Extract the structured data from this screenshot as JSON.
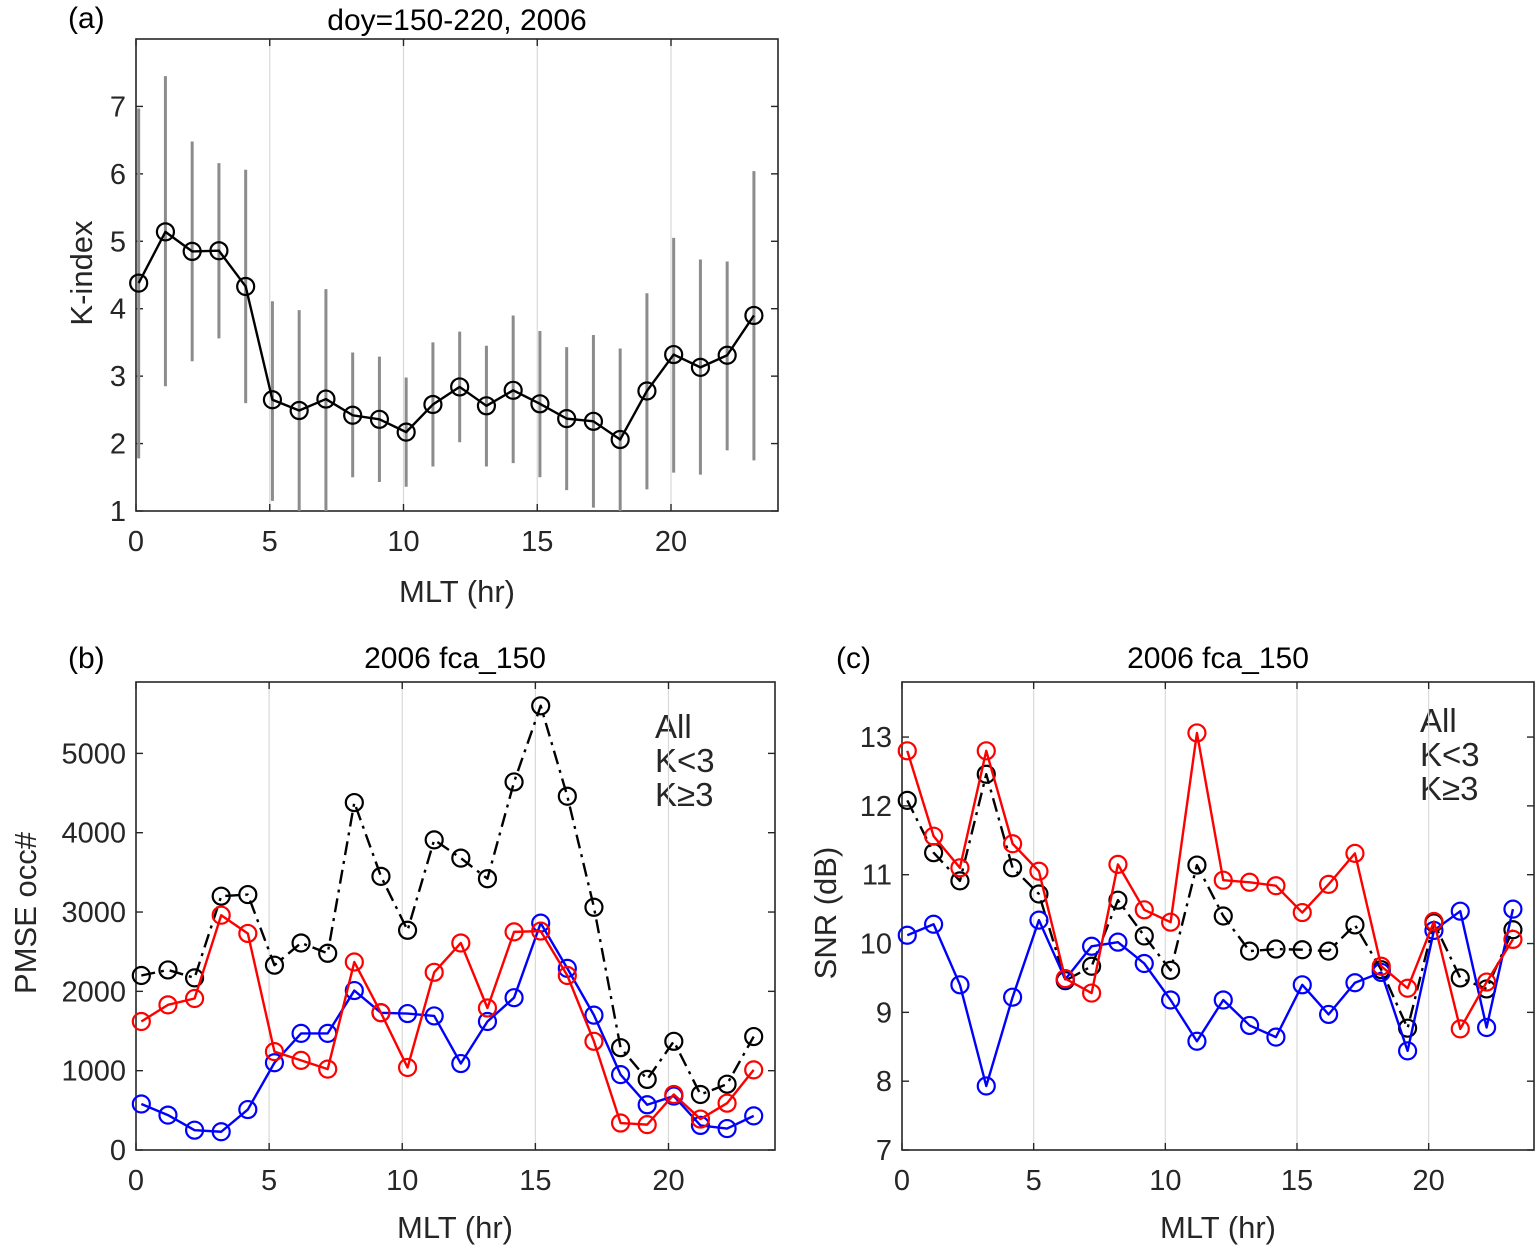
{
  "chart_data": [
    {
      "id": "a",
      "type": "line",
      "panel_label": "(a)",
      "title": "doy=150-220, 2006",
      "xlabel": "MLT (hr)",
      "ylabel": "K-index",
      "xlim": [
        0,
        24
      ],
      "ylim": [
        1,
        8
      ],
      "xticks": [
        0,
        5,
        10,
        15,
        20
      ],
      "yticks": [
        1,
        2,
        3,
        4,
        5,
        6,
        7
      ],
      "grid": "x",
      "x": [
        0.1,
        1.1,
        2.1,
        3.1,
        4.1,
        5.1,
        6.1,
        7.1,
        8.1,
        9.1,
        10.1,
        11.1,
        12.1,
        13.1,
        14.1,
        15.1,
        16.1,
        17.1,
        18.1,
        19.1,
        20.1,
        21.1,
        22.1,
        23.1
      ],
      "series": [
        {
          "values": [
            4.38,
            5.14,
            4.85,
            4.86,
            4.33,
            2.65,
            2.49,
            2.66,
            2.42,
            2.36,
            2.17,
            2.58,
            2.84,
            2.56,
            2.79,
            2.59,
            2.37,
            2.33,
            2.06,
            2.78,
            3.32,
            3.13,
            3.31,
            3.9
          ],
          "err_low": [
            1.78,
            2.85,
            3.22,
            3.56,
            2.6,
            1.15,
            1.0,
            1.0,
            1.5,
            1.43,
            1.36,
            1.66,
            2.02,
            1.66,
            1.71,
            1.5,
            1.31,
            1.05,
            1.0,
            1.32,
            1.57,
            1.54,
            1.9,
            1.75
          ],
          "err_high": [
            6.97,
            7.45,
            6.48,
            6.16,
            6.06,
            4.11,
            3.98,
            4.29,
            3.35,
            3.29,
            2.98,
            3.5,
            3.66,
            3.45,
            3.9,
            3.67,
            3.43,
            3.61,
            3.41,
            4.23,
            5.05,
            4.73,
            4.7,
            6.04
          ],
          "color": "#000000",
          "errcolor": "#8c8c8c",
          "style": "solid",
          "marker": "o"
        }
      ]
    },
    {
      "id": "b",
      "type": "line",
      "panel_label": "(b)",
      "title": "2006 fca_150",
      "xlabel": "MLT (hr)",
      "ylabel": "PMSE occ#",
      "xlim": [
        0,
        24
      ],
      "ylim": [
        0,
        5900
      ],
      "xticks": [
        0,
        5,
        10,
        15,
        20
      ],
      "yticks": [
        0,
        1000,
        2000,
        3000,
        4000,
        5000
      ],
      "grid": "x",
      "legend_position": "top-right",
      "legend": [
        "All",
        "K<3",
        "K≥3"
      ],
      "x": [
        0.2,
        1.2,
        2.2,
        3.2,
        4.2,
        5.2,
        6.2,
        7.2,
        8.2,
        9.2,
        10.2,
        11.2,
        12.2,
        13.2,
        14.2,
        15.2,
        16.2,
        17.2,
        18.2,
        19.2,
        20.2,
        21.2,
        22.2,
        23.2
      ],
      "series": [
        {
          "name": "All",
          "values": [
            2200,
            2270,
            2170,
            3200,
            3220,
            2330,
            2610,
            2480,
            4380,
            3450,
            2770,
            3910,
            3680,
            3420,
            4640,
            5600,
            4460,
            3060,
            1290,
            890,
            1370,
            700,
            830,
            1430
          ],
          "color": "#000000",
          "style": "dashdot",
          "marker": "o"
        },
        {
          "name": "K<3",
          "values": [
            580,
            440,
            250,
            230,
            510,
            1100,
            1470,
            1470,
            2010,
            1730,
            1720,
            1690,
            1090,
            1620,
            1920,
            2860,
            2290,
            1700,
            950,
            570,
            680,
            310,
            270,
            430
          ],
          "color": "#0000ff",
          "style": "solid",
          "marker": "o"
        },
        {
          "name": "K≥3",
          "values": [
            1620,
            1830,
            1910,
            2960,
            2730,
            1240,
            1130,
            1020,
            2370,
            1730,
            1040,
            2240,
            2610,
            1790,
            2750,
            2760,
            2200,
            1370,
            340,
            320,
            700,
            390,
            590,
            1010
          ],
          "color": "#ff0000",
          "style": "solid",
          "marker": "o"
        }
      ]
    },
    {
      "id": "c",
      "type": "line",
      "panel_label": "(c)",
      "title": "2006 fca_150",
      "xlabel": "MLT (hr)",
      "ylabel": "SNR (dB)",
      "xlim": [
        0,
        24
      ],
      "ylim": [
        7,
        13.8
      ],
      "xticks": [
        0,
        5,
        10,
        15,
        20
      ],
      "yticks": [
        7,
        8,
        9,
        10,
        11,
        12,
        13
      ],
      "grid": "x",
      "legend_position": "top-right",
      "legend": [
        "All",
        "K<3",
        "K≥3"
      ],
      "x": [
        0.2,
        1.2,
        2.2,
        3.2,
        4.2,
        5.2,
        6.2,
        7.2,
        8.2,
        9.2,
        10.2,
        11.2,
        12.2,
        13.2,
        14.2,
        15.2,
        16.2,
        17.2,
        18.2,
        19.2,
        20.2,
        21.2,
        22.2,
        23.2
      ],
      "series": [
        {
          "name": "All",
          "values": [
            12.08,
            11.32,
            10.91,
            12.46,
            11.1,
            10.72,
            9.46,
            9.67,
            10.63,
            10.11,
            9.61,
            11.14,
            10.4,
            9.89,
            9.92,
            9.91,
            9.89,
            10.27,
            9.62,
            8.77,
            10.3,
            9.5,
            9.34,
            10.2
          ],
          "color": "#000000",
          "style": "dashdot",
          "marker": "o"
        },
        {
          "name": "K<3",
          "values": [
            10.12,
            10.28,
            9.4,
            7.93,
            9.22,
            10.34,
            9.48,
            9.96,
            10.02,
            9.71,
            9.18,
            8.58,
            9.18,
            8.81,
            8.64,
            9.4,
            8.97,
            9.43,
            9.58,
            8.44,
            10.19,
            10.47,
            8.78,
            10.5
          ],
          "color": "#0000ff",
          "style": "solid",
          "marker": "o"
        },
        {
          "name": "K≥3",
          "values": [
            12.8,
            11.56,
            11.1,
            12.8,
            11.45,
            11.05,
            9.49,
            9.28,
            11.15,
            10.49,
            10.31,
            13.06,
            10.92,
            10.89,
            10.84,
            10.45,
            10.86,
            11.31,
            9.67,
            9.35,
            10.32,
            8.76,
            9.44,
            10.06
          ],
          "color": "#ff0000",
          "style": "solid",
          "marker": "o"
        }
      ]
    }
  ]
}
